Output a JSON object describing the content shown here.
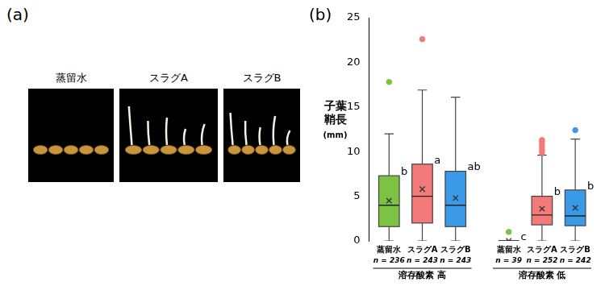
{
  "photo_panel": {
    "panel_label": "(a)",
    "photos": [
      "蒸留水",
      "スラグA",
      "スラグB"
    ]
  },
  "chart_data": {
    "type": "box",
    "panel_label": "(b)",
    "y_label": "子葉鞘長",
    "y_unit": "(mm)",
    "ylim": [
      0,
      25
    ],
    "yticks": [
      0,
      5,
      10,
      15,
      20,
      25
    ],
    "grid": false,
    "groups": [
      {
        "name": "溶存酸素 高",
        "boxes": [
          {
            "category": "蒸留水",
            "n_label": "n = 236",
            "color": "#7dc242",
            "min": 0,
            "q1": 1.6,
            "median": 4.0,
            "q3": 7.3,
            "max": 12.0,
            "mean": 4.5,
            "outliers": [
              17.8
            ],
            "letter": "b"
          },
          {
            "category": "スラグA",
            "n_label": "n = 243",
            "color": "#f47a7a",
            "min": 0,
            "q1": 2.0,
            "median": 5.0,
            "q3": 8.6,
            "max": 16.9,
            "mean": 5.8,
            "outliers": [
              22.6
            ],
            "letter": "a"
          },
          {
            "category": "スラグB",
            "n_label": "n = 243",
            "color": "#3a9ae8",
            "min": 0,
            "q1": 1.6,
            "median": 4.0,
            "q3": 7.8,
            "max": 16.1,
            "mean": 4.8,
            "outliers": [],
            "letter": "ab"
          }
        ]
      },
      {
        "name": "溶存酸素 低",
        "boxes": [
          {
            "category": "蒸留水",
            "n_label": "n = 39",
            "color": "#7dc242",
            "min": 0,
            "q1": 0,
            "median": 0,
            "q3": 0,
            "max": 0,
            "mean": 0,
            "outliers": [
              1.0
            ],
            "letter": "c"
          },
          {
            "category": "スラグA",
            "n_label": "n = 252",
            "color": "#f47a7a",
            "min": 0,
            "q1": 1.8,
            "median": 2.9,
            "q3": 5.0,
            "max": 9.6,
            "mean": 3.6,
            "outliers": [
              9.9,
              10.2,
              10.5,
              10.8,
              11.1,
              11.3
            ],
            "letter": "b"
          },
          {
            "category": "スラグB",
            "n_label": "n = 242",
            "color": "#3a9ae8",
            "min": 0,
            "q1": 1.7,
            "median": 2.8,
            "q3": 5.7,
            "max": 11.4,
            "mean": 3.7,
            "outliers": [
              12.4
            ],
            "letter": "b"
          }
        ]
      }
    ]
  }
}
